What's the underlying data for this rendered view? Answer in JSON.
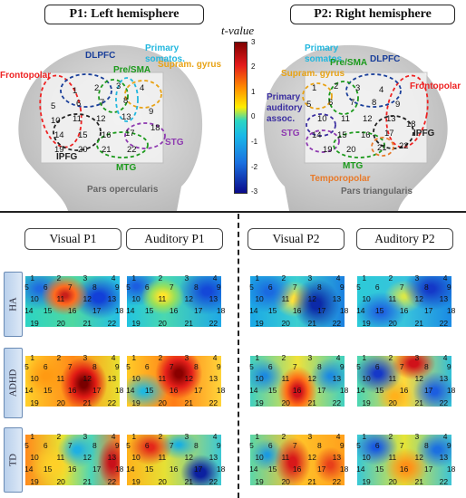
{
  "panels": {
    "p1": "P1: Left hemisphere",
    "p2": "P2: Right hemisphere"
  },
  "colorbar": {
    "label": "t-value",
    "ticks": [
      "3",
      "2",
      "1",
      "0",
      "-1",
      "-2",
      "-3"
    ]
  },
  "p1_regions": {
    "dlpfc": "DLPFC",
    "primary_somatos": [
      "Primary",
      "somatos."
    ],
    "pre_sma": "Pre/SMA",
    "supramarginal": [
      "Supram. gyrus"
    ],
    "frontopolar": "Frontopolar",
    "ipfg": "IPFG",
    "stg": "STG",
    "mtg": "MTG",
    "pars_opercularis": "Pars opercularis"
  },
  "p2_regions": {
    "primary_somatos": [
      "Primary",
      "somatos."
    ],
    "dlpfc": "DLPFC",
    "supramarginal": "Supram. gyrus",
    "pre_sma": "Pre/SMA",
    "frontopolar": "Frontopolar",
    "primary_auditory": [
      "Primary",
      "auditory",
      "assoc."
    ],
    "stg": "STG",
    "ipfg": "IPFG",
    "mtg": "MTG",
    "temporopolar": "Temporopolar",
    "pars_triangularis": "Pars triangularis"
  },
  "column_headers": [
    "Visual P1",
    "Auditory P1",
    "Visual P2",
    "Auditory P2"
  ],
  "row_labels": [
    "HA",
    "ADHD",
    "TD"
  ],
  "channel_numbers": [
    "1",
    "2",
    "3",
    "4",
    "5",
    "6",
    "7",
    "8",
    "9",
    "10",
    "11",
    "12",
    "13",
    "14",
    "15",
    "16",
    "17",
    "18",
    "19",
    "20",
    "21",
    "22"
  ]
}
